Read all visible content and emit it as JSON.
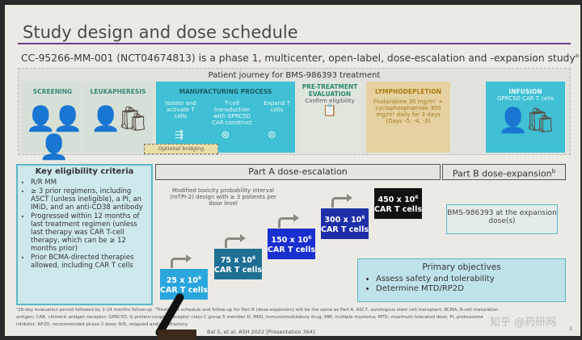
{
  "title": "Study design and dose schedule",
  "subtitle": "CC-95266-MM-001 (NCT04674813) is a phase 1, multicenter, open-label, dose-escalation and -expansion study",
  "subtitle_sup": "a",
  "journey": {
    "header": "Patient journey for BMS-986393 treatment",
    "screening": "SCREENING",
    "leukapheresis": "LEUKAPHERESIS",
    "manufacturing": {
      "title": "MANUFACTURING PROCESS",
      "step1": "Isolate and activate T cells",
      "step2": "T-cell transduction with GPRC5D CAR construct",
      "step3": "Expand T cells"
    },
    "pretreatment": {
      "title": "PRE-TREATMENT EVALUATION",
      "desc": "Confirm eligibility"
    },
    "lymphodepletion": {
      "title": "LYMPHODEPLETION",
      "desc": "Fludarabine 30 mg/m² + cyclophosphamide 300 mg/m² daily for 3 days (Days -5, -4, -3)"
    },
    "infusion": {
      "title": "INFUSION",
      "desc": "GPRC5D CAR T cells"
    },
    "bridging": "Optional bridging"
  },
  "eligibility": {
    "title": "Key eligibility criteria",
    "items": [
      "R/R MM",
      "≥ 3 prior regimens, including ASCT (unless ineligible), a PI, an IMiD, and an anti-CD38 antibody",
      "Progressed within 12 months of last treatment regimen (unless last therapy was CAR T-cell therapy, which can be ≥ 12 months prior)",
      "Prior BCMA-directed therapies allowed, including CAR T cells"
    ]
  },
  "partA": {
    "title": "Part A dose-escalation",
    "note": "Modified toxicity probability interval (mTPI-2) design with ≥ 3 patients per dose level",
    "doses": [
      {
        "value": "25 x 10",
        "exp": "6",
        "unit": "CAR T cells"
      },
      {
        "value": "75 x 10",
        "exp": "6",
        "unit": "CAR T cells"
      },
      {
        "value": "150 x 10",
        "exp": "6",
        "unit": "CAR T cells"
      },
      {
        "value": "300 x 10",
        "exp": "6",
        "unit": "CAR T cells"
      },
      {
        "value": "450 x 10",
        "exp": "6",
        "unit": "CAR T cells"
      }
    ]
  },
  "partB": {
    "title": "Part B dose-expansion",
    "sup": "b",
    "box": "BMS-986393 at the expansion dose(s)"
  },
  "objectives": {
    "title": "Primary objectives",
    "items": [
      "Assess safety and tolerability",
      "Determine MTD/RP2D"
    ]
  },
  "footnotes": "ᵃ28-day evaluation period followed by 2-24 months follow-up. ᵇTreatment schedule and follow-up for Part B (dose-expansion) will be the same as Part A. ASCT, autologous stem cell transplant; BCMA, B-cell maturation antigen; CAR, chimeric antigen receptor; GPRC5D, G protein-coupled receptor class C group 5 member D; IMiD, immunomodulatory drug; MM, multiple myeloma; MTD, maximum tolerated dose; PI, proteasome inhibitor; RP2D, recommended phase 2 dose; R/R, relapsed and/or refractory.",
  "citation": "Bal S, et al. ASH 2022 [Presentation 364]",
  "page": "3",
  "watermark": "知乎 @药研网",
  "colors": {
    "accent": "#6b3d8a",
    "teal": "#4fc3d6",
    "dose1": "#2aa6de",
    "dose2": "#1f6f95",
    "dose3": "#1a2fd0",
    "dose4": "#1d2fa8",
    "dose5": "#111111"
  }
}
